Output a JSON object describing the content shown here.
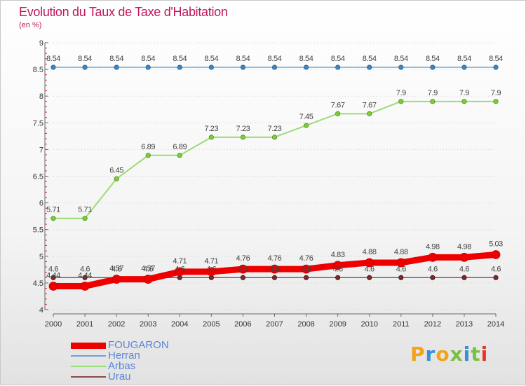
{
  "title": "Evolution du Taux de Taxe d'Habitation",
  "subtitle": "(en %)",
  "brand": "Proxiti",
  "chart_data": {
    "type": "line",
    "title": "Evolution du Taux de Taxe d'Habitation",
    "subtitle": "(en %)",
    "xlabel": "",
    "ylabel": "",
    "x": [
      2000,
      2001,
      2002,
      2003,
      2004,
      2005,
      2006,
      2007,
      2008,
      2009,
      2010,
      2011,
      2012,
      2013,
      2014
    ],
    "ylim": [
      4,
      9
    ],
    "yticks": [
      4,
      4.5,
      5,
      5.5,
      6,
      6.5,
      7,
      7.5,
      8,
      8.5,
      9
    ],
    "grid": "horizontal dotted",
    "legend_position": "bottom-left",
    "series": [
      {
        "name": "FOUGARON",
        "color": "#ee0000",
        "values": [
          4.44,
          4.44,
          4.57,
          4.57,
          4.71,
          4.71,
          4.76,
          4.76,
          4.76,
          4.83,
          4.88,
          4.88,
          4.98,
          4.98,
          5.03
        ],
        "labels": [
          "4.44",
          "4.44",
          "4.57",
          "4.57",
          "4.71",
          "4.71",
          "4.76",
          "4.76",
          "4.76",
          "4.83",
          "4.88",
          "4.88",
          "4.98",
          "4.98",
          "5.03"
        ]
      },
      {
        "name": "Herran",
        "color": "#6aa5d0",
        "values": [
          8.54,
          8.54,
          8.54,
          8.54,
          8.54,
          8.54,
          8.54,
          8.54,
          8.54,
          8.54,
          8.54,
          8.54,
          8.54,
          8.54,
          8.54
        ],
        "labels": [
          "8.54",
          "8.54",
          "8.54",
          "8.54",
          "8.54",
          "8.54",
          "8.54",
          "8.54",
          "8.54",
          "8.54",
          "8.54",
          "8.54",
          "8.54",
          "8.54",
          "8.54"
        ]
      },
      {
        "name": "Arbas",
        "color": "#99dd77",
        "values": [
          5.71,
          5.71,
          6.45,
          6.89,
          6.89,
          7.23,
          7.23,
          7.23,
          7.45,
          7.67,
          7.67,
          7.9,
          7.9,
          7.9,
          7.9
        ],
        "labels": [
          "5.71",
          "5.71",
          "6.45",
          "6.89",
          "6.89",
          "7.23",
          "7.23",
          "7.23",
          "7.45",
          "7.67",
          "7.67",
          "7.9",
          "7.9",
          "7.9",
          "7.9"
        ]
      },
      {
        "name": "Urau",
        "color": "#8b4a4a",
        "values": [
          4.6,
          4.6,
          4.6,
          4.6,
          4.6,
          4.6,
          4.6,
          4.6,
          4.6,
          4.6,
          4.6,
          4.6,
          4.6,
          4.6,
          4.6
        ],
        "labels": [
          "4.6",
          "4.6",
          "4.6",
          "4.6",
          "4.6",
          "4.6",
          "4.6",
          "4.6",
          "4.6",
          "4.6",
          "4.6",
          "4.6",
          "4.6",
          "4.6",
          "4.6"
        ]
      }
    ]
  }
}
